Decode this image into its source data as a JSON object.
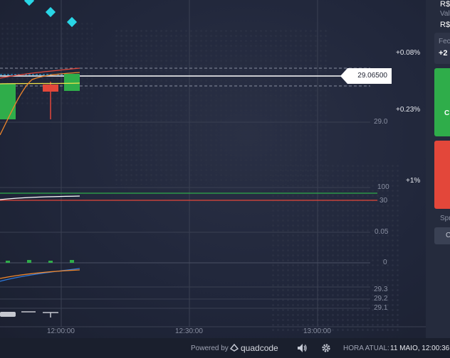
{
  "chart": {
    "current_price": "29.06500",
    "price_levels": [
      "29.0"
    ],
    "percent_marks": [
      "+0.08%",
      "+0.23%",
      "+1%"
    ],
    "rsi_levels": [
      "100",
      "30"
    ],
    "osc_levels": [
      "0.05",
      "0"
    ],
    "lower_levels": [
      "29.3",
      "29.2",
      "29.1"
    ],
    "time_labels": [
      "12:00:00",
      "12:30:00",
      "13:00:00"
    ]
  },
  "side_panel": {
    "currency_1": "R$",
    "value_label": "Val",
    "currency_2": "R$",
    "close_label": "Fec",
    "profit": "+2",
    "call_label": "C",
    "spread_label": "Spr",
    "small_btn": "C"
  },
  "footer": {
    "powered_by": "Powered by",
    "brand": "quadcode",
    "time_label": "HORA ATUAL:",
    "time_value": "11 MAIO, 12:00:36"
  },
  "colors": {
    "up": "#2fad4a",
    "down": "#e3473a",
    "accent": "#29d6e6"
  }
}
